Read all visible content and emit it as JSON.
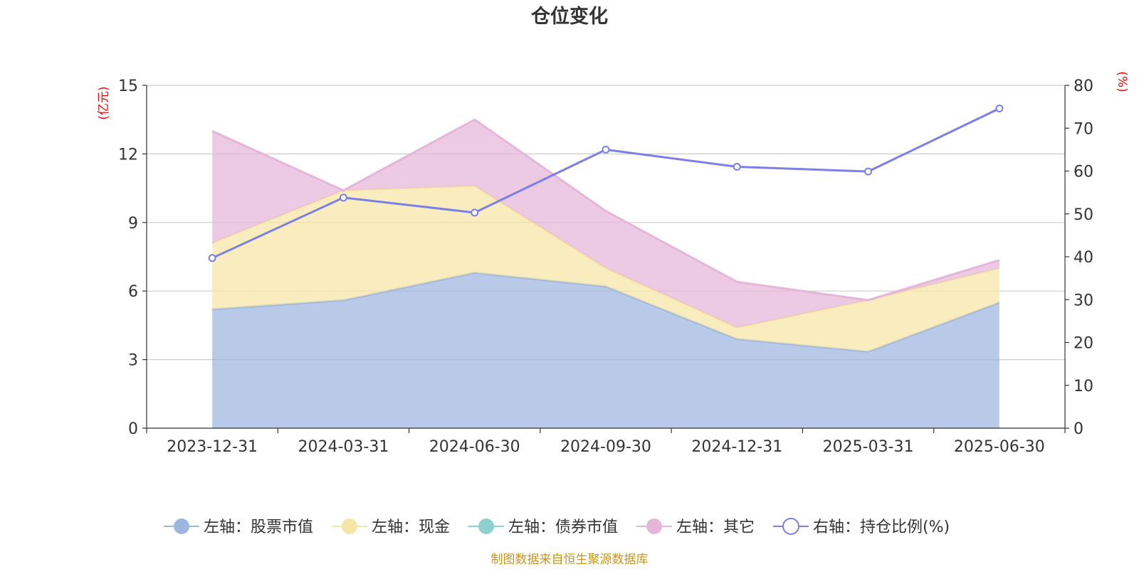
{
  "title": "仓位变化",
  "source": "制图数据来自恒生聚源数据库",
  "chart_data": {
    "type": "area",
    "title": "仓位变化",
    "categories": [
      "2023-12-31",
      "2024-03-31",
      "2024-06-30",
      "2024-09-30",
      "2024-12-31",
      "2025-03-31",
      "2025-06-30"
    ],
    "y_left": {
      "label": "(亿元)",
      "range": [
        0,
        15
      ],
      "ticks": [
        0,
        3,
        6,
        9,
        12,
        15
      ]
    },
    "y_right": {
      "label": "(%)",
      "range": [
        0,
        80
      ],
      "ticks": [
        0,
        10,
        20,
        30,
        40,
        50,
        60,
        70,
        80
      ]
    },
    "stacked": true,
    "grid": true,
    "legend_position": "bottom",
    "series": [
      {
        "name": "左轴：股票市值",
        "axis": "left",
        "type": "area",
        "color": "#9db6df",
        "values": [
          5.2,
          5.6,
          6.8,
          6.2,
          3.9,
          3.35,
          5.5
        ]
      },
      {
        "name": "左轴：现金",
        "axis": "left",
        "type": "area",
        "color": "#f6e6a6",
        "values": [
          2.9,
          4.8,
          3.8,
          0.8,
          0.5,
          2.25,
          1.5
        ]
      },
      {
        "name": "左轴：债券市值",
        "axis": "left",
        "type": "area",
        "color": "#8fd1cf",
        "values": [
          0,
          0,
          0,
          0,
          0,
          0,
          0
        ]
      },
      {
        "name": "左轴：其它",
        "axis": "left",
        "type": "area",
        "color": "#e6b5da",
        "values": [
          4.9,
          0,
          2.9,
          2.5,
          2.0,
          0,
          0.35
        ]
      },
      {
        "name": "右轴：持仓比例(%)",
        "axis": "right",
        "type": "line",
        "color": "#7b7fe6",
        "values": [
          39.7,
          53.8,
          50.3,
          65.0,
          61.0,
          59.9,
          74.6
        ]
      }
    ]
  }
}
